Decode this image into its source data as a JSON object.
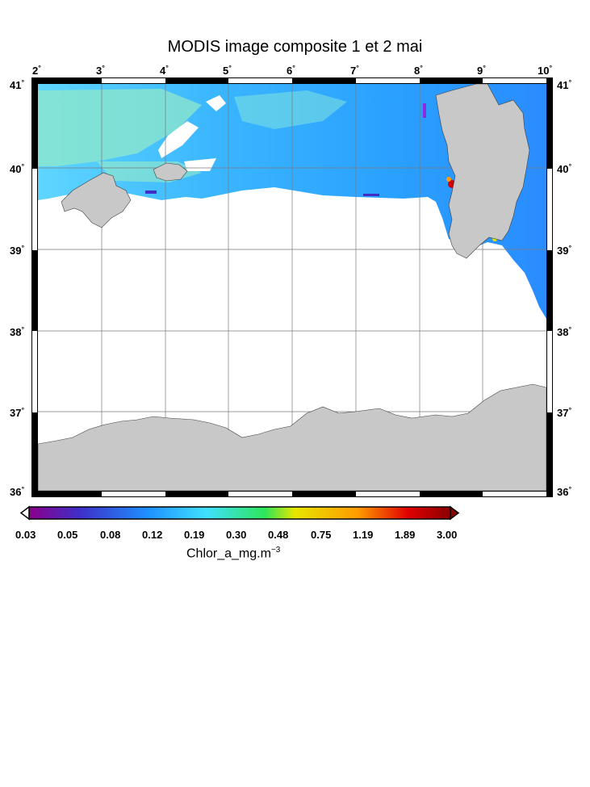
{
  "title": "MODIS image composite 1 et 2 mai",
  "map": {
    "lon_ticks": [
      "2",
      "3",
      "4",
      "5",
      "6",
      "7",
      "8",
      "9",
      "10"
    ],
    "lat_ticks": [
      "41",
      "40",
      "39",
      "38",
      "37",
      "36"
    ],
    "degree_mark": "°",
    "colors": {
      "land": "#c8c8c8",
      "water_mid": "#2aa6ff",
      "water_light": "#5fd6ff",
      "water_green": "#9ff0c0",
      "grid": "#7a7a7a"
    }
  },
  "colorbar": {
    "ticks": [
      "0.03",
      "0.05",
      "0.08",
      "0.12",
      "0.19",
      "0.30",
      "0.48",
      "0.75",
      "1.19",
      "1.89",
      "3.00"
    ],
    "unit_main": "Chlor_a_mg.m",
    "unit_sup": "−3",
    "stops": [
      "#8b008b",
      "#3f2fc8",
      "#1e8fff",
      "#40e0ff",
      "#2ee65a",
      "#e6e600",
      "#ff9b00",
      "#e00000",
      "#8b0000"
    ]
  }
}
